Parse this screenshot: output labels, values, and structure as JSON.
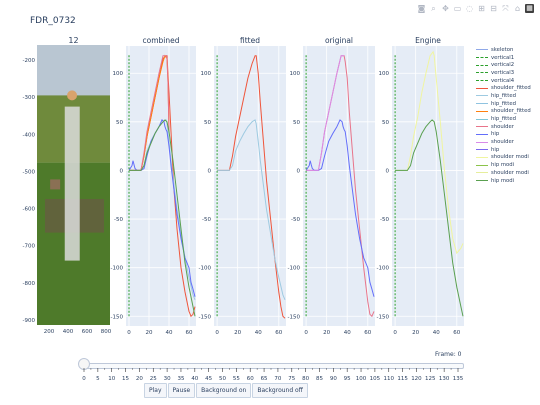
{
  "title": "FDR_0732",
  "modebar": [
    "camera-icon",
    "zoom-icon",
    "pan-icon",
    "box-select-icon",
    "lasso-icon",
    "zoom-in-icon",
    "zoom-out-icon",
    "autoscale-icon",
    "home-icon",
    "plotly-logo"
  ],
  "image_panel": {
    "subplot_title": "12",
    "x_ticks": [
      "200",
      "400",
      "600",
      "800"
    ],
    "y_ticks": [
      "-200",
      "-300",
      "-400",
      "-500",
      "-600",
      "-700",
      "-800",
      "-900"
    ]
  },
  "subplot_titles": [
    "combined",
    "fitted",
    "original",
    "Engine"
  ],
  "y_ticks": [
    "100",
    "50",
    "0",
    "-50",
    "-100",
    "-150"
  ],
  "x_ticks": [
    "0",
    "20",
    "40",
    "60"
  ],
  "legend": [
    {
      "label": "skeleton",
      "color": "#8fa8e8",
      "style": "solid"
    },
    {
      "label": "vertical1",
      "color": "#2ca02c",
      "style": "dash"
    },
    {
      "label": "vertical2",
      "color": "#2ca02c",
      "style": "dash"
    },
    {
      "label": "vertical3",
      "color": "#2ca02c",
      "style": "dash"
    },
    {
      "label": "vertical4",
      "color": "#2ca02c",
      "style": "dash"
    },
    {
      "label": "shoulder_fitted",
      "color": "#ef553b",
      "style": "solid"
    },
    {
      "label": "hip_fitted",
      "color": "#9ecae1",
      "style": "solid"
    },
    {
      "label": "hip_fitted",
      "color": "#8fc3e0",
      "style": "solid"
    },
    {
      "label": "shoulder_fitted",
      "color": "#ff7f0e",
      "style": "solid"
    },
    {
      "label": "hip_fitted",
      "color": "#7fc6d8",
      "style": "solid"
    },
    {
      "label": "shoulder",
      "color": "#e8748a",
      "style": "solid"
    },
    {
      "label": "hip",
      "color": "#636efa",
      "style": "solid"
    },
    {
      "label": "shoulder",
      "color": "#d98be8",
      "style": "solid"
    },
    {
      "label": "hip",
      "color": "#7b68ee",
      "style": "solid"
    },
    {
      "label": "shoulder modi",
      "color": "#f0f5a0",
      "style": "solid"
    },
    {
      "label": "hip modi",
      "color": "#8bc34a",
      "style": "solid"
    },
    {
      "label": "shoulder modi",
      "color": "#e6ee9c",
      "style": "solid"
    },
    {
      "label": "hip modi",
      "color": "#5aa050",
      "style": "solid"
    }
  ],
  "chart_data": [
    {
      "type": "line",
      "title": "combined",
      "ylim": [
        -160,
        128
      ],
      "xlim": [
        -3,
        67
      ],
      "series": [
        {
          "name": "vertical1",
          "color": "#2ca02c",
          "dash": true,
          "x": [
            0,
            0
          ],
          "y": [
            -150,
            120
          ]
        },
        {
          "name": "shoulder_fitted",
          "color": "#ef553b",
          "x": [
            0,
            4,
            8,
            12,
            15,
            18,
            22,
            26,
            30,
            34,
            37,
            38,
            40,
            42,
            45,
            48,
            52,
            56,
            60,
            62,
            64,
            66
          ],
          "y": [
            0,
            0,
            0,
            0,
            15,
            35,
            55,
            75,
            95,
            115,
            118,
            118,
            80,
            40,
            -20,
            -60,
            -100,
            -125,
            -145,
            -150,
            -148,
            -140
          ]
        },
        {
          "name": "shoulder_fitted",
          "color": "#ff7f0e",
          "x": [
            0,
            4,
            8,
            12,
            15,
            18,
            22,
            26,
            30,
            34,
            36,
            38,
            39,
            40
          ],
          "y": [
            0,
            0,
            0,
            0,
            15,
            35,
            55,
            75,
            95,
            112,
            118,
            115,
            90,
            40
          ]
        },
        {
          "name": "hip_fitted",
          "color": "#9ecae1",
          "x": [
            0,
            4,
            8,
            12,
            15,
            18,
            22,
            26,
            30,
            34,
            37,
            38,
            40,
            42,
            45,
            48,
            52,
            56,
            60,
            64,
            66
          ],
          "y": [
            0,
            0,
            0,
            0,
            5,
            20,
            30,
            38,
            45,
            50,
            52,
            48,
            30,
            10,
            -15,
            -40,
            -65,
            -90,
            -110,
            -128,
            -133
          ]
        },
        {
          "name": "hip",
          "color": "#636efa",
          "x": [
            0,
            3,
            4,
            5,
            6,
            8,
            10,
            12,
            15,
            18,
            22,
            26,
            30,
            33,
            35,
            36,
            37,
            38,
            40,
            42,
            45,
            48,
            52,
            56,
            60,
            62,
            64,
            66
          ],
          "y": [
            0,
            5,
            10,
            6,
            2,
            0,
            0,
            0,
            2,
            15,
            30,
            38,
            45,
            52,
            50,
            45,
            42,
            40,
            25,
            5,
            -20,
            -45,
            -70,
            -90,
            -100,
            -115,
            -122,
            -130
          ]
        },
        {
          "name": "shoulder",
          "color": "#e8748a",
          "x": [
            0,
            4,
            8,
            12,
            15,
            18,
            22,
            26,
            30,
            34,
            37,
            38,
            39,
            40
          ],
          "y": [
            0,
            0,
            0,
            0,
            18,
            40,
            60,
            80,
            100,
            118,
            118,
            115,
            90,
            40
          ]
        },
        {
          "name": "hip modi",
          "color": "#5aa050",
          "x": [
            0,
            4,
            8,
            12,
            15,
            18,
            22,
            26,
            30,
            34,
            36,
            38,
            40,
            44,
            48,
            52,
            56,
            60,
            64,
            66
          ],
          "y": [
            0,
            0,
            0,
            0,
            5,
            18,
            28,
            38,
            45,
            50,
            52,
            50,
            40,
            10,
            -25,
            -60,
            -95,
            -120,
            -140,
            -150
          ]
        }
      ]
    },
    {
      "type": "line",
      "title": "fitted",
      "ylim": [
        -160,
        128
      ],
      "xlim": [
        -3,
        67
      ],
      "series": [
        {
          "name": "shoulder_fitted",
          "color": "#ef553b",
          "x": [
            0,
            4,
            8,
            12,
            15,
            18,
            22,
            26,
            30,
            34,
            37,
            38,
            40,
            42,
            45,
            48,
            52,
            56,
            60,
            62,
            64,
            66
          ],
          "y": [
            0,
            0,
            0,
            0,
            15,
            35,
            55,
            75,
            95,
            110,
            118,
            118,
            100,
            70,
            30,
            -10,
            -50,
            -90,
            -125,
            -140,
            -150,
            -152
          ]
        },
        {
          "name": "hip_fitted",
          "color": "#9ecae1",
          "x": [
            0,
            4,
            8,
            12,
            15,
            18,
            22,
            26,
            30,
            34,
            37,
            38,
            40,
            42,
            45,
            48,
            52,
            56,
            60,
            64,
            66
          ],
          "y": [
            0,
            0,
            0,
            0,
            5,
            20,
            30,
            38,
            45,
            50,
            52,
            48,
            30,
            10,
            -15,
            -40,
            -65,
            -90,
            -110,
            -128,
            -133
          ]
        },
        {
          "name": "vertical2",
          "color": "#2ca02c",
          "dash": true,
          "x": [
            0,
            0
          ],
          "y": [
            -150,
            120
          ]
        }
      ]
    },
    {
      "type": "line",
      "title": "original",
      "ylim": [
        -160,
        128
      ],
      "xlim": [
        -3,
        67
      ],
      "series": [
        {
          "name": "shoulder",
          "color": "#e8748a",
          "x": [
            0,
            4,
            8,
            12,
            15,
            18,
            22,
            26,
            30,
            34,
            37,
            38,
            40,
            42,
            45,
            48,
            52,
            56,
            60,
            62,
            64,
            66
          ],
          "y": [
            0,
            0,
            0,
            0,
            18,
            40,
            60,
            80,
            100,
            118,
            118,
            112,
            95,
            60,
            20,
            -20,
            -60,
            -100,
            -135,
            -148,
            -150,
            -145
          ]
        },
        {
          "name": "hip",
          "color": "#636efa",
          "x": [
            0,
            3,
            4,
            5,
            6,
            8,
            10,
            12,
            15,
            18,
            22,
            26,
            30,
            33,
            35,
            36,
            37,
            38,
            40,
            42,
            45,
            48,
            52,
            56,
            60,
            62,
            64,
            66
          ],
          "y": [
            0,
            5,
            10,
            6,
            2,
            0,
            0,
            0,
            2,
            15,
            30,
            38,
            45,
            52,
            50,
            45,
            42,
            40,
            25,
            5,
            -20,
            -45,
            -70,
            -90,
            -100,
            -115,
            -122,
            -130
          ]
        },
        {
          "name": "shoulder",
          "color": "#d98be8",
          "x": [
            0,
            4,
            8,
            12,
            15,
            18,
            22,
            26,
            30,
            34,
            37
          ],
          "y": [
            0,
            0,
            0,
            0,
            18,
            40,
            60,
            80,
            100,
            118,
            118
          ]
        },
        {
          "name": "vertical3",
          "color": "#2ca02c",
          "dash": true,
          "x": [
            0,
            0
          ],
          "y": [
            -150,
            120
          ]
        }
      ]
    },
    {
      "type": "line",
      "title": "Engine",
      "ylim": [
        -160,
        128
      ],
      "xlim": [
        -3,
        67
      ],
      "series": [
        {
          "name": "shoulder modi",
          "color": "#f0f5a0",
          "x": [
            0,
            4,
            8,
            12,
            15,
            18,
            22,
            26,
            30,
            34,
            37,
            38,
            40,
            44,
            48,
            52,
            56,
            60,
            64,
            66
          ],
          "y": [
            0,
            0,
            0,
            0,
            15,
            35,
            55,
            80,
            100,
            118,
            122,
            118,
            95,
            50,
            0,
            -40,
            -70,
            -85,
            -80,
            -75
          ]
        },
        {
          "name": "hip modi",
          "color": "#5aa050",
          "x": [
            0,
            4,
            8,
            12,
            15,
            18,
            22,
            26,
            30,
            34,
            36,
            38,
            40,
            44,
            48,
            52,
            56,
            60,
            64,
            66
          ],
          "y": [
            0,
            0,
            0,
            0,
            5,
            18,
            28,
            38,
            45,
            50,
            52,
            50,
            40,
            10,
            -25,
            -60,
            -95,
            -120,
            -140,
            -150
          ]
        },
        {
          "name": "vertical4",
          "color": "#2ca02c",
          "dash": true,
          "x": [
            0,
            0
          ],
          "y": [
            -150,
            120
          ]
        }
      ]
    }
  ],
  "frame_label": "Frame: 0",
  "slider_ticks": [
    "0",
    "5",
    "10",
    "15",
    "20",
    "25",
    "30",
    "35",
    "40",
    "45",
    "50",
    "55",
    "60",
    "65",
    "70",
    "75",
    "80",
    "85",
    "90",
    "95",
    "100",
    "105",
    "110",
    "115",
    "120",
    "125",
    "130",
    "135"
  ],
  "buttons": [
    "Play",
    "Pause",
    "Background on",
    "Background off"
  ]
}
